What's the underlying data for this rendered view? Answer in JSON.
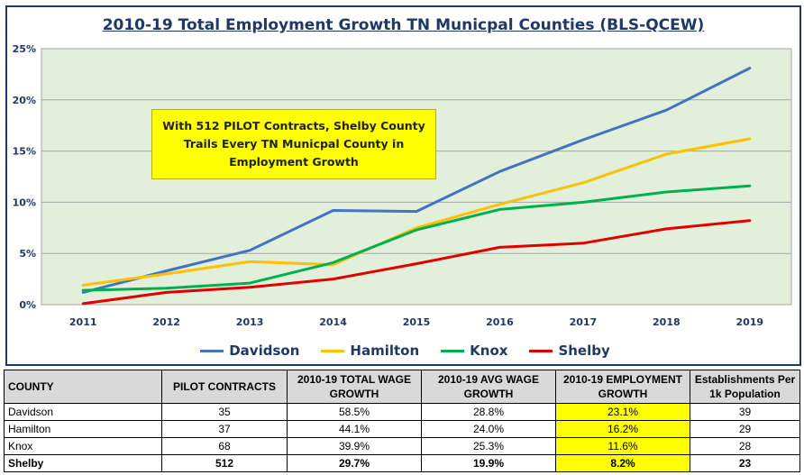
{
  "chart_data": {
    "type": "line",
    "title": "2010-19 Total Employment Growth TN Municpal Counties (BLS-QCEW)",
    "categories": [
      "2011",
      "2012",
      "2013",
      "2014",
      "2015",
      "2016",
      "2017",
      "2018",
      "2019"
    ],
    "y_ticks": [
      "0%",
      "5%",
      "10%",
      "15%",
      "20%",
      "25%"
    ],
    "ylim": [
      0,
      25
    ],
    "y_unit": "%",
    "grid": true,
    "legend_position": "bottom",
    "series": [
      {
        "name": "Davidson",
        "color": "#4472c4",
        "values": [
          1.2,
          3.3,
          5.3,
          9.2,
          9.1,
          13.0,
          16.1,
          19.0,
          23.1
        ]
      },
      {
        "name": "Hamilton",
        "color": "#ffc000",
        "values": [
          1.9,
          3.0,
          4.2,
          3.9,
          7.5,
          9.8,
          11.9,
          14.7,
          16.2
        ]
      },
      {
        "name": "Knox",
        "color": "#00b050",
        "values": [
          1.4,
          1.6,
          2.1,
          4.1,
          7.3,
          9.3,
          10.0,
          11.0,
          11.6
        ]
      },
      {
        "name": "Shelby",
        "color": "#e00000",
        "values": [
          0.1,
          1.2,
          1.7,
          2.5,
          4.0,
          5.6,
          6.0,
          7.4,
          8.2
        ]
      }
    ],
    "annotation": "With 512 PILOT Contracts, Shelby County Trails Every TN Municpal County in Employment Growth"
  },
  "table": {
    "headers": [
      "COUNTY",
      "PILOT CONTRACTS",
      "2010-19 TOTAL WAGE GROWTH",
      "2010-19  AVG WAGE GROWTH",
      "2010-19 EMPLOYMENT GROWTH",
      "Establishments Per 1k Population"
    ],
    "rows": [
      [
        "Davidson",
        "35",
        "58.5%",
        "28.8%",
        "23.1%",
        "39"
      ],
      [
        "Hamilton",
        "37",
        "44.1%",
        "24.0%",
        "16.2%",
        "29"
      ],
      [
        "Knox",
        "68",
        "39.9%",
        "25.3%",
        "11.6%",
        "28"
      ],
      [
        "Shelby",
        "512",
        "29.7%",
        "19.9%",
        "8.2%",
        "23"
      ]
    ]
  },
  "colors": {
    "plot_background": "#e2efda",
    "frame": "#1f3864",
    "highlight": "#ffff00"
  }
}
